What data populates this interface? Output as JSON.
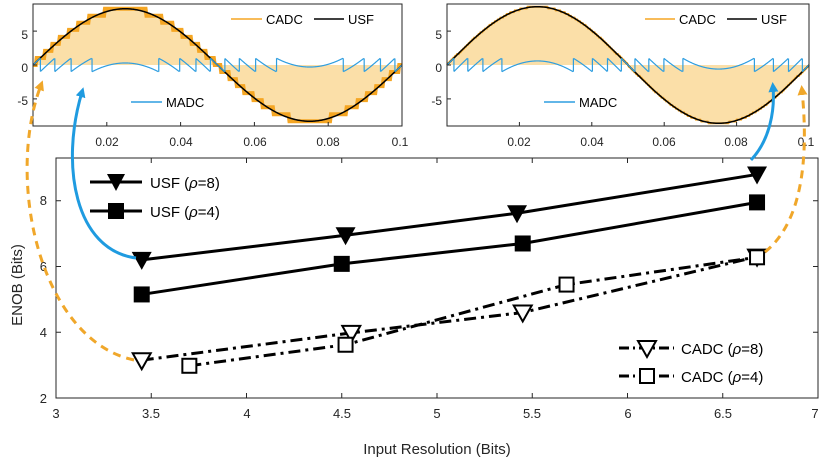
{
  "colors": {
    "cadc": "#f5a623",
    "cadc_fill": "#fbdfa8",
    "usf": "#000000",
    "madc": "#2f9ee0",
    "axis": "#262626",
    "arrow_blue": "#1f9be0",
    "arrow_orange": "#f0a72a"
  },
  "chart_data": [
    {
      "id": "main",
      "type": "line",
      "xlabel": "Input Resolution (Bits)",
      "ylabel": "ENOB (Bits)",
      "xlim": [
        3,
        7
      ],
      "ylim": [
        2,
        9.3
      ],
      "xticks": [
        3,
        3.5,
        4,
        4.5,
        5,
        5.5,
        6,
        6.5,
        7
      ],
      "xtick_labels": [
        "3",
        "3.5",
        "4",
        "4.5",
        "5",
        "5.5",
        "6",
        "6.5",
        "7"
      ],
      "yticks": [
        2,
        4,
        6,
        8
      ],
      "ytick_labels": [
        "2",
        "4",
        "6",
        "8"
      ],
      "series": [
        {
          "name": "USF (ρ=8)",
          "label_main": "USF (",
          "label_rho": "ρ",
          "label_tail": "=8)",
          "x": [
            3.45,
            4.52,
            5.42,
            6.68
          ],
          "y": [
            6.2,
            6.95,
            7.62,
            8.8
          ],
          "marker": "triangle-down-filled",
          "line": "solid"
        },
        {
          "name": "USF (ρ=4)",
          "label_main": "USF (",
          "label_rho": "ρ",
          "label_tail": "=4)",
          "x": [
            3.45,
            4.5,
            5.45,
            6.68
          ],
          "y": [
            5.15,
            6.08,
            6.7,
            7.95
          ],
          "marker": "square-filled",
          "line": "solid"
        },
        {
          "name": "CADC (ρ=8)",
          "label_main": "CADC (",
          "label_rho": "ρ",
          "label_tail": "=8)",
          "x": [
            3.45,
            4.55,
            5.45,
            6.68
          ],
          "y": [
            3.15,
            3.98,
            4.6,
            6.3
          ],
          "marker": "triangle-down-open",
          "line": "dashdot"
        },
        {
          "name": "CADC (ρ=4)",
          "label_main": "CADC (",
          "label_rho": "ρ",
          "label_tail": "=4)",
          "x": [
            3.7,
            4.52,
            5.68,
            6.68
          ],
          "y": [
            2.98,
            3.62,
            5.45,
            6.28
          ],
          "marker": "square-open",
          "line": "dashdot"
        }
      ]
    },
    {
      "id": "inset_left",
      "type": "line",
      "xlim": [
        0,
        0.1
      ],
      "ylim": [
        -9,
        9
      ],
      "xticks": [
        0.02,
        0.04,
        0.06,
        0.08,
        0.1
      ],
      "xtick_labels": [
        "0.02",
        "0.04",
        "0.06",
        "0.08",
        "0.1"
      ],
      "yticks": [
        5,
        0,
        -5
      ],
      "ytick_labels": [
        "5",
        "0",
        "-5"
      ],
      "legend": [
        "CADC",
        "USF",
        "MADC"
      ],
      "usf_amplitude": 8.3,
      "usf_period": 0.1,
      "cadc_levels": 16,
      "madc_threshold": 1.0
    },
    {
      "id": "inset_right",
      "type": "line",
      "xlim": [
        0,
        0.1
      ],
      "ylim": [
        -9,
        9
      ],
      "xticks": [
        0.02,
        0.04,
        0.06,
        0.08,
        0.1
      ],
      "xtick_labels": [
        "0.02",
        "0.04",
        "0.06",
        "0.08",
        "0.1"
      ],
      "yticks": [
        5,
        0,
        -5
      ],
      "ytick_labels": [
        "5",
        "0",
        "-5"
      ],
      "legend": [
        "CADC",
        "USF",
        "MADC"
      ],
      "usf_amplitude": 8.6,
      "usf_period": 0.1,
      "cadc_levels": 64,
      "madc_threshold": 1.0
    }
  ]
}
